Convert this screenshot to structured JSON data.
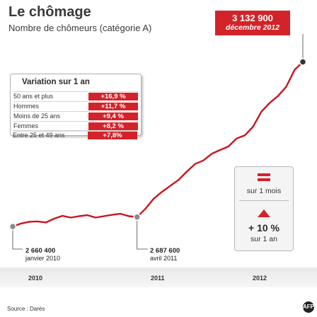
{
  "header": {
    "title": "Le chômage",
    "subtitle": "Nombre de chômeurs (catégorie A)"
  },
  "badge": {
    "value": "3 132 900",
    "date": "décembre 2012"
  },
  "variation": {
    "title": "Variation sur 1 an",
    "rows": [
      {
        "label": "50 ans et plus",
        "value": "+16,9 %"
      },
      {
        "label": "Hommes",
        "value": "+11,7 %"
      },
      {
        "label": "Moins de 25 ans",
        "value": "+9,4 %"
      },
      {
        "label": "Femmes",
        "value": "+8,2 %"
      },
      {
        "label": "Entre 25 et 49 ans",
        "value": "+7,8%"
      }
    ]
  },
  "monthly": {
    "label_month": "sur 1 mois",
    "value_year": "+ 10 %",
    "label_year": "sur 1 an"
  },
  "annotations": {
    "start_value": "2 660 400",
    "start_date": "janvier 2010",
    "mid_value": "2 687 600",
    "mid_date": "avril 2011"
  },
  "years": [
    "2010",
    "2011",
    "2012"
  ],
  "source": "Source : Darès",
  "logo": "AFP",
  "colors": {
    "accent": "#d2232a",
    "line": "#c8151f",
    "marker": "#8a8a8a"
  },
  "chart_data": {
    "type": "line",
    "title": "Le chômage",
    "subtitle": "Nombre de chômeurs (catégorie A)",
    "x": [
      "2010-01",
      "2010-02",
      "2010-03",
      "2010-04",
      "2010-05",
      "2010-06",
      "2010-07",
      "2010-08",
      "2010-09",
      "2010-10",
      "2010-11",
      "2010-12",
      "2011-01",
      "2011-02",
      "2011-03",
      "2011-04",
      "2011-05",
      "2011-06",
      "2011-07",
      "2011-08",
      "2011-09",
      "2011-10",
      "2011-11",
      "2011-12",
      "2012-01",
      "2012-02",
      "2012-03",
      "2012-04",
      "2012-05",
      "2012-06",
      "2012-07",
      "2012-08",
      "2012-09",
      "2012-10",
      "2012-11",
      "2012-12"
    ],
    "series": [
      {
        "name": "",
        "values": [
          2660400,
          2669000,
          2674000,
          2675000,
          2672000,
          2683000,
          2691000,
          2686000,
          2690000,
          2693000,
          2686000,
          2690000,
          2694000,
          2697000,
          2690000,
          2687600,
          2711000,
          2740000,
          2760000,
          2777000,
          2794000,
          2818000,
          2840000,
          2850000,
          2869000,
          2880000,
          2890000,
          2913000,
          2922000,
          2947000,
          2990000,
          3015000,
          3035000,
          3062000,
          3110000,
          3132900
        ]
      }
    ],
    "ylim": [
      2620000,
      3140000
    ],
    "xlabel": "",
    "ylabel": "",
    "grid": false,
    "highlight_points": [
      {
        "x": "2010-01",
        "value": 2660400
      },
      {
        "x": "2011-04",
        "value": 2687600
      },
      {
        "x": "2012-12",
        "value": 3132900
      }
    ]
  }
}
